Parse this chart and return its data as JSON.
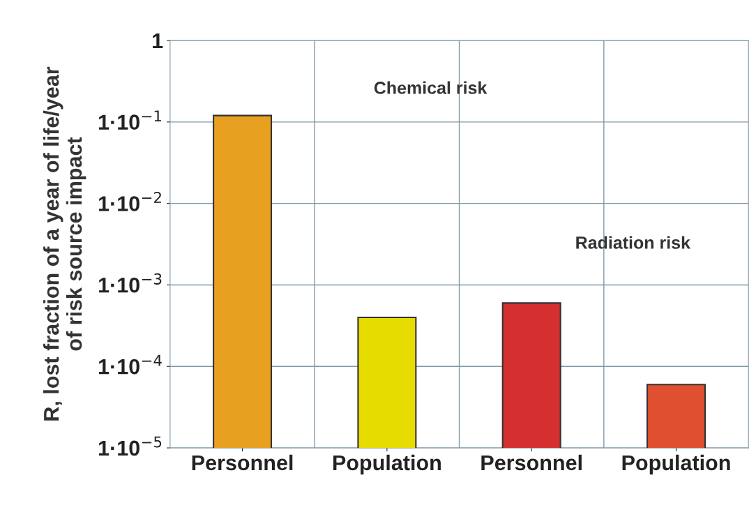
{
  "chart_data": {
    "type": "bar",
    "ylabel": "R, lost fraction of a year of life/year\nof risk source impact",
    "categories": [
      "Personnel",
      "Population",
      "Personnel",
      "Population"
    ],
    "values": [
      0.12,
      0.0004,
      0.0006,
      6e-05
    ],
    "colors": [
      "#e8a020",
      "#e6dc00",
      "#d43030",
      "#e05030"
    ],
    "log": true,
    "ylim": [
      1e-05,
      1
    ],
    "yticks": [
      {
        "value": 1e-05,
        "label": "1·10$^{−5}$"
      },
      {
        "value": 0.0001,
        "label": "1·10$^{−4}$"
      },
      {
        "value": 0.001,
        "label": "1·10$^{−3}$"
      },
      {
        "value": 0.01,
        "label": "1·10$^{−2}$"
      },
      {
        "value": 0.1,
        "label": "1·10$^{−1}$"
      },
      1
    ],
    "grid": true,
    "annotations": [
      "Chemical risk",
      "Radiation risk"
    ]
  }
}
